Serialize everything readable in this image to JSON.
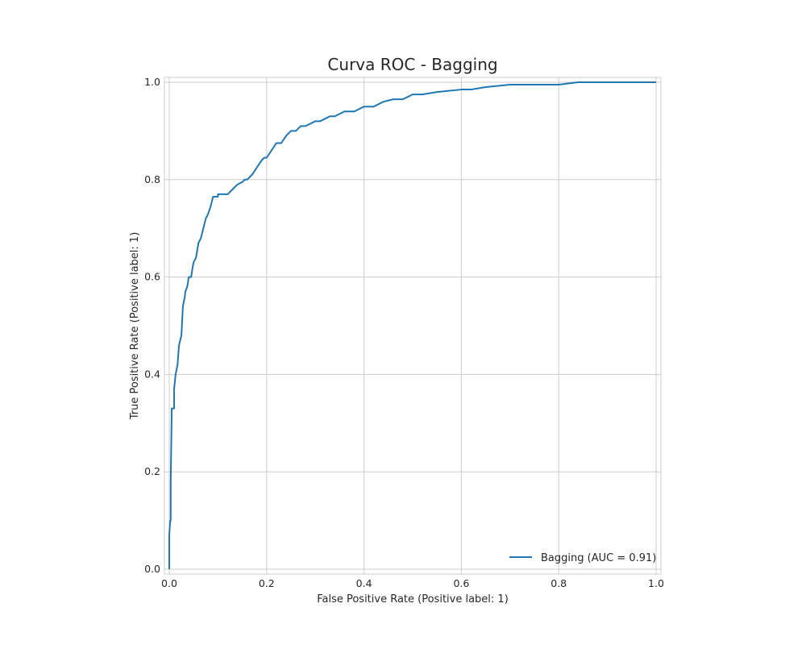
{
  "chart_data": {
    "type": "line",
    "title": "Curva ROC - Bagging",
    "xlabel": "False Positive Rate (Positive label: 1)",
    "ylabel": "True Positive Rate (Positive label: 1)",
    "xlim": [
      0.0,
      1.0
    ],
    "ylim": [
      0.0,
      1.0
    ],
    "x_ticks": [
      0.0,
      0.2,
      0.4,
      0.6,
      0.8,
      1.0
    ],
    "y_ticks": [
      0.0,
      0.2,
      0.4,
      0.6,
      0.8,
      1.0
    ],
    "x_tick_labels": [
      "0.0",
      "0.2",
      "0.4",
      "0.6",
      "0.8",
      "1.0"
    ],
    "y_tick_labels": [
      "0.0",
      "0.2",
      "0.4",
      "0.6",
      "0.8",
      "1.0"
    ],
    "grid": true,
    "legend_position": "bottom-right",
    "series": [
      {
        "name": "Bagging (AUC = 0.91)",
        "color": "#1f77b4",
        "x": [
          0.0,
          0.0,
          0.002,
          0.003,
          0.003,
          0.005,
          0.005,
          0.01,
          0.01,
          0.013,
          0.017,
          0.02,
          0.025,
          0.028,
          0.03,
          0.032,
          0.033,
          0.037,
          0.04,
          0.045,
          0.048,
          0.05,
          0.055,
          0.06,
          0.065,
          0.07,
          0.075,
          0.08,
          0.085,
          0.09,
          0.095,
          0.1,
          0.1,
          0.11,
          0.12,
          0.13,
          0.14,
          0.15,
          0.155,
          0.16,
          0.17,
          0.18,
          0.19,
          0.195,
          0.2,
          0.21,
          0.22,
          0.23,
          0.24,
          0.25,
          0.26,
          0.27,
          0.27,
          0.28,
          0.29,
          0.3,
          0.31,
          0.32,
          0.33,
          0.34,
          0.35,
          0.35,
          0.36,
          0.37,
          0.38,
          0.39,
          0.4,
          0.41,
          0.42,
          0.44,
          0.46,
          0.48,
          0.5,
          0.51,
          0.52,
          0.55,
          0.6,
          0.62,
          0.65,
          0.7,
          0.75,
          0.8,
          0.84,
          0.9,
          1.0
        ],
        "y": [
          0.0,
          0.07,
          0.1,
          0.1,
          0.18,
          0.32,
          0.33,
          0.33,
          0.37,
          0.4,
          0.42,
          0.46,
          0.48,
          0.54,
          0.55,
          0.56,
          0.57,
          0.58,
          0.6,
          0.6,
          0.62,
          0.63,
          0.64,
          0.67,
          0.68,
          0.7,
          0.72,
          0.73,
          0.745,
          0.765,
          0.765,
          0.765,
          0.77,
          0.77,
          0.77,
          0.78,
          0.79,
          0.795,
          0.8,
          0.8,
          0.81,
          0.825,
          0.84,
          0.845,
          0.845,
          0.86,
          0.875,
          0.875,
          0.89,
          0.9,
          0.9,
          0.91,
          0.91,
          0.91,
          0.915,
          0.92,
          0.92,
          0.925,
          0.93,
          0.93,
          0.935,
          0.935,
          0.94,
          0.94,
          0.94,
          0.945,
          0.95,
          0.95,
          0.95,
          0.96,
          0.965,
          0.965,
          0.975,
          0.975,
          0.975,
          0.98,
          0.985,
          0.985,
          0.99,
          0.995,
          0.995,
          0.995,
          1.0,
          1.0,
          1.0
        ]
      }
    ]
  }
}
